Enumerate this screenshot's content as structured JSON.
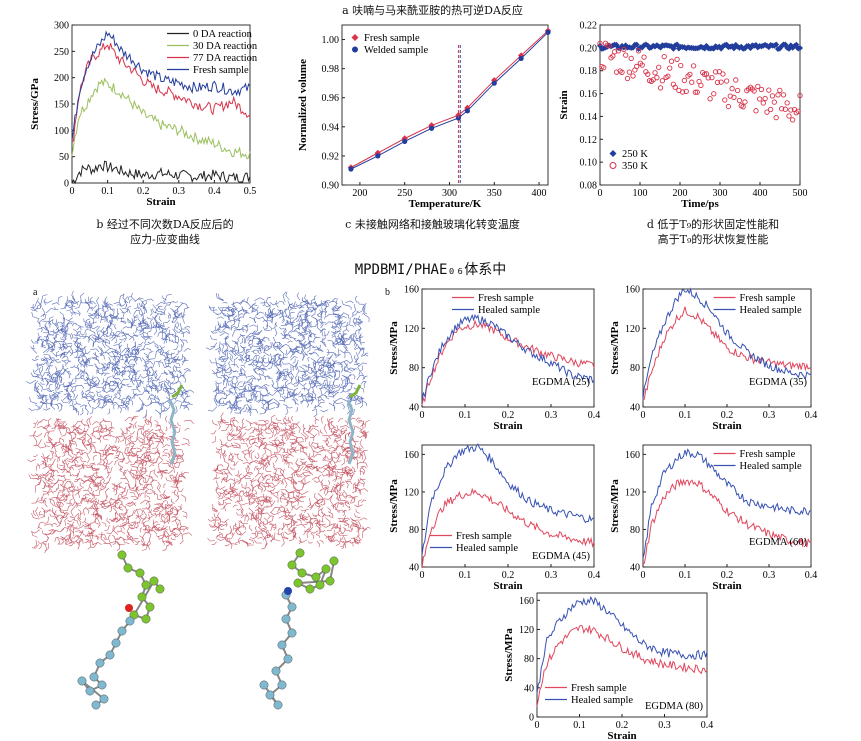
{
  "header_text": "MPDBMI/PHAE₀₆体系中",
  "captions": {
    "b": "b 经过不同次数DA反应后的\n应力-应变曲线",
    "a_title": "a 呋喃与马来酰亚胺的热可逆DA反应",
    "c": "c 未接触网络和接触玻璃化转变温度",
    "d": "d 低于T₉的形状固定性能和\n高于T₉的形状恢复性能"
  },
  "panel_letters": {
    "a": "a",
    "b": "b"
  },
  "colors": {
    "black": "#222222",
    "green": "#9bbf5e",
    "red": "#d8334a",
    "blue": "#233d9c",
    "fresh_pink": "#e0485e",
    "healed_blue": "#3852b3"
  },
  "chart_data": [
    {
      "id": "stress-strain-da",
      "type": "line",
      "xlabel": "Strain",
      "ylabel": "Stress/GPa",
      "xlim": [
        0,
        0.5
      ],
      "ylim": [
        0,
        300
      ],
      "xticks": [
        "0",
        "0.1",
        "0.2",
        "0.3",
        "0.4",
        "0.5"
      ],
      "yticks": [
        "0",
        "50",
        "100",
        "150",
        "200",
        "250",
        "300"
      ],
      "legend_position": "top-right",
      "series": [
        {
          "name": "0 DA reaction",
          "color": "#222222",
          "x": [
            0,
            0.02,
            0.04,
            0.06,
            0.08,
            0.1,
            0.12,
            0.15,
            0.2,
            0.25,
            0.3,
            0.35,
            0.4,
            0.45,
            0.5
          ],
          "y": [
            0,
            20,
            30,
            25,
            35,
            30,
            28,
            20,
            15,
            18,
            15,
            12,
            15,
            10,
            12
          ]
        },
        {
          "name": "30 DA reaction",
          "color": "#9bbf5e",
          "x": [
            0,
            0.02,
            0.04,
            0.06,
            0.08,
            0.1,
            0.12,
            0.14,
            0.17,
            0.2,
            0.25,
            0.3,
            0.35,
            0.4,
            0.45,
            0.5
          ],
          "y": [
            60,
            130,
            150,
            175,
            190,
            188,
            180,
            170,
            150,
            130,
            110,
            100,
            85,
            75,
            60,
            55
          ]
        },
        {
          "name": "77 DA reaction",
          "color": "#d8334a",
          "x": [
            0,
            0.02,
            0.04,
            0.06,
            0.08,
            0.1,
            0.12,
            0.14,
            0.17,
            0.2,
            0.23,
            0.26,
            0.3,
            0.35,
            0.4,
            0.45,
            0.5
          ],
          "y": [
            70,
            170,
            215,
            240,
            250,
            265,
            245,
            230,
            215,
            195,
            180,
            175,
            165,
            150,
            140,
            155,
            130
          ]
        },
        {
          "name": "Fresh sample",
          "color": "#233d9c",
          "x": [
            0,
            0.02,
            0.04,
            0.06,
            0.08,
            0.1,
            0.12,
            0.14,
            0.17,
            0.2,
            0.23,
            0.26,
            0.3,
            0.35,
            0.4,
            0.45,
            0.5
          ],
          "y": [
            80,
            175,
            220,
            245,
            265,
            285,
            270,
            250,
            235,
            215,
            205,
            195,
            190,
            180,
            185,
            175,
            180
          ]
        }
      ]
    },
    {
      "id": "normalized-volume",
      "type": "line",
      "xlabel": "Temperature/K",
      "ylabel": "Normalized volume",
      "xlim": [
        180,
        410
      ],
      "ylim": [
        0.9,
        1.01
      ],
      "xticks": [
        "200",
        "250",
        "300",
        "350",
        "400"
      ],
      "yticks": [
        "0.90",
        "0.92",
        "0.94",
        "0.96",
        "0.98",
        "1.00"
      ],
      "legend_position": "top-left",
      "vlines": [
        310,
        312
      ],
      "series": [
        {
          "name": "Fresh sample",
          "color": "#d8334a",
          "marker": "diamond",
          "x": [
            190,
            220,
            250,
            280,
            310,
            320,
            350,
            380,
            410
          ],
          "y": [
            0.912,
            0.922,
            0.932,
            0.941,
            0.948,
            0.953,
            0.972,
            0.989,
            1.006
          ]
        },
        {
          "name": "Welded sample",
          "color": "#233d9c",
          "marker": "circle",
          "x": [
            190,
            220,
            250,
            280,
            310,
            320,
            350,
            380,
            410
          ],
          "y": [
            0.911,
            0.92,
            0.93,
            0.939,
            0.946,
            0.951,
            0.97,
            0.987,
            1.005
          ]
        }
      ]
    },
    {
      "id": "shape-memory",
      "type": "scatter",
      "xlabel": "Time/ps",
      "ylabel": "Strain",
      "xlim": [
        0,
        500
      ],
      "ylim": [
        0.08,
        0.22
      ],
      "xticks": [
        "0",
        "100",
        "200",
        "300",
        "400",
        "500"
      ],
      "yticks": [
        "0.08",
        "0.10",
        "0.12",
        "0.14",
        "0.16",
        "0.18",
        "0.20",
        "0.22"
      ],
      "legend_position": "bottom-left",
      "series": [
        {
          "name": "250 K",
          "color": "#233d9c",
          "marker": "diamond",
          "trend": {
            "start": 0.201,
            "end": 0.201
          }
        },
        {
          "name": "350 K",
          "color": "#d8334a",
          "marker": "open-circle",
          "trend": {
            "start": 0.195,
            "end": 0.145
          }
        }
      ]
    },
    {
      "id": "egdma-25",
      "type": "line",
      "title": "EGDMA (25)",
      "xlabel": "Strain",
      "ylabel": "Stress/MPa",
      "xlim": [
        0,
        0.4
      ],
      "ylim": [
        40,
        160
      ],
      "xticks": [
        "0",
        "0.1",
        "0.2",
        "0.3",
        "0.4"
      ],
      "yticks": [
        "40",
        "80",
        "120",
        "160"
      ],
      "legend_position": "top",
      "series": [
        {
          "name": "Fresh sample",
          "color": "#e0485e",
          "x": [
            0,
            0.02,
            0.05,
            0.08,
            0.1,
            0.13,
            0.16,
            0.2,
            0.25,
            0.3,
            0.35,
            0.4
          ],
          "y": [
            40,
            70,
            100,
            118,
            122,
            124,
            120,
            110,
            100,
            92,
            86,
            82
          ]
        },
        {
          "name": "Healed sample",
          "color": "#3852b3",
          "x": [
            0,
            0.02,
            0.05,
            0.08,
            0.1,
            0.13,
            0.16,
            0.2,
            0.25,
            0.3,
            0.35,
            0.4
          ],
          "y": [
            45,
            75,
            105,
            122,
            128,
            130,
            125,
            112,
            96,
            85,
            72,
            68
          ]
        }
      ]
    },
    {
      "id": "egdma-35",
      "type": "line",
      "title": "EGDMA (35)",
      "xlabel": "Strain",
      "ylabel": "Stress/MPa",
      "xlim": [
        0,
        0.4
      ],
      "ylim": [
        40,
        160
      ],
      "xticks": [
        "0",
        "0.1",
        "0.2",
        "0.3",
        "0.4"
      ],
      "yticks": [
        "40",
        "80",
        "120",
        "160"
      ],
      "legend_position": "top-right",
      "series": [
        {
          "name": "Fresh sample",
          "color": "#e0485e",
          "x": [
            0,
            0.02,
            0.05,
            0.08,
            0.1,
            0.13,
            0.16,
            0.2,
            0.25,
            0.3,
            0.35,
            0.4
          ],
          "y": [
            45,
            75,
            110,
            130,
            138,
            132,
            118,
            100,
            90,
            85,
            82,
            82
          ]
        },
        {
          "name": "Healed sample",
          "color": "#3852b3",
          "x": [
            0,
            0.02,
            0.05,
            0.08,
            0.1,
            0.13,
            0.16,
            0.2,
            0.25,
            0.3,
            0.35,
            0.4
          ],
          "y": [
            50,
            90,
            125,
            150,
            160,
            152,
            140,
            115,
            95,
            82,
            75,
            72
          ]
        }
      ]
    },
    {
      "id": "egdma-45",
      "type": "line",
      "title": "EGDMA (45)",
      "xlabel": "Strain",
      "ylabel": "Stress/MPa",
      "xlim": [
        0,
        0.4
      ],
      "ylim": [
        40,
        170
      ],
      "xticks": [
        "0",
        "0.1",
        "0.2",
        "0.3",
        "0.4"
      ],
      "yticks": [
        "40",
        "80",
        "120",
        "160"
      ],
      "legend_position": "bottom-left",
      "series": [
        {
          "name": "Fresh sample",
          "color": "#e0485e",
          "x": [
            0,
            0.02,
            0.05,
            0.08,
            0.1,
            0.13,
            0.16,
            0.2,
            0.25,
            0.3,
            0.35,
            0.4
          ],
          "y": [
            40,
            80,
            105,
            115,
            118,
            120,
            112,
            100,
            85,
            75,
            70,
            65
          ]
        },
        {
          "name": "Healed sample",
          "color": "#3852b3",
          "x": [
            0,
            0.02,
            0.05,
            0.08,
            0.1,
            0.13,
            0.16,
            0.2,
            0.25,
            0.3,
            0.35,
            0.4
          ],
          "y": [
            50,
            110,
            140,
            160,
            165,
            168,
            155,
            130,
            110,
            100,
            95,
            90
          ]
        }
      ]
    },
    {
      "id": "egdma-60",
      "type": "line",
      "title": "EGDMA (60)",
      "xlabel": "Strain",
      "ylabel": "Stress/MPa",
      "xlim": [
        0,
        0.4
      ],
      "ylim": [
        40,
        170
      ],
      "xticks": [
        "0",
        "0.1",
        "0.2",
        "0.3",
        "0.4"
      ],
      "yticks": [
        "40",
        "80",
        "120",
        "160"
      ],
      "legend_position": "top-right",
      "series": [
        {
          "name": "Fresh sample",
          "color": "#e0485e",
          "x": [
            0,
            0.02,
            0.05,
            0.08,
            0.1,
            0.13,
            0.16,
            0.2,
            0.25,
            0.3,
            0.35,
            0.4
          ],
          "y": [
            40,
            85,
            115,
            128,
            132,
            130,
            118,
            100,
            85,
            75,
            68,
            65
          ]
        },
        {
          "name": "Healed sample",
          "color": "#3852b3",
          "x": [
            0,
            0.02,
            0.05,
            0.08,
            0.1,
            0.13,
            0.16,
            0.2,
            0.25,
            0.3,
            0.35,
            0.4
          ],
          "y": [
            45,
            105,
            140,
            155,
            162,
            160,
            148,
            128,
            110,
            105,
            100,
            100
          ]
        }
      ]
    },
    {
      "id": "egdma-80",
      "type": "line",
      "title": "EGDMA (80)",
      "xlabel": "Strain",
      "ylabel": "Stress/MPa",
      "xlim": [
        0,
        0.4
      ],
      "ylim": [
        0,
        170
      ],
      "xticks": [
        "0",
        "0.1",
        "0.2",
        "0.3",
        "0.4"
      ],
      "yticks": [
        "0",
        "40",
        "80",
        "120",
        "160"
      ],
      "legend_position": "bottom-left",
      "series": [
        {
          "name": "Fresh sample",
          "color": "#e0485e",
          "x": [
            0,
            0.02,
            0.05,
            0.08,
            0.1,
            0.13,
            0.16,
            0.2,
            0.25,
            0.3,
            0.35,
            0.4
          ],
          "y": [
            20,
            70,
            100,
            115,
            122,
            120,
            110,
            95,
            80,
            72,
            68,
            65
          ]
        },
        {
          "name": "Healed sample",
          "color": "#3852b3",
          "x": [
            0,
            0.02,
            0.05,
            0.08,
            0.1,
            0.13,
            0.16,
            0.2,
            0.25,
            0.3,
            0.35,
            0.4
          ],
          "y": [
            30,
            100,
            130,
            150,
            158,
            160,
            148,
            125,
            100,
            88,
            85,
            85
          ]
        }
      ]
    }
  ]
}
